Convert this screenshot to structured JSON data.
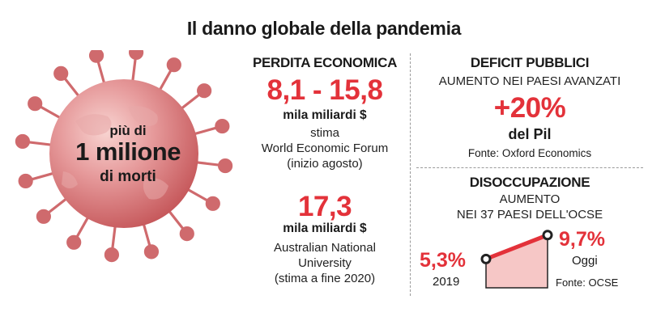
{
  "title": "Il danno globale della pandemia",
  "virus": {
    "line1": "più di",
    "line2": "1 milione",
    "line3": "di morti",
    "colors": {
      "body": "#d9777a",
      "spikes": "#c65a5e",
      "highlight": "#f5c6c3"
    }
  },
  "economic_loss": {
    "header": "PERDITA ECONOMICA",
    "value1": "8,1 - 15,8",
    "unit1": "mila miliardi $",
    "source1_line1": "stima",
    "source1_line2": "World Economic Forum",
    "source1_line3": "(inizio agosto)",
    "value2": "17,3",
    "unit2": "mila miliardi $",
    "source2_line1": "Australian National",
    "source2_line2": "University",
    "source2_line3": "(stima a fine 2020)"
  },
  "public_deficit": {
    "header": "DEFICIT PUBBLICI",
    "subheader": "AUMENTO NEI PAESI AVANZATI",
    "value": "+20%",
    "unit": "del Pil",
    "source": "Fonte: Oxford Economics"
  },
  "unemployment": {
    "header": "DISOCCUPAZIONE",
    "sub1": "AUMENTO",
    "sub2": "NEI 37 PAESI DELL'OCSE",
    "start_value": "5,3%",
    "start_label": "2019",
    "end_value": "9,7%",
    "end_label": "Oggi",
    "source": "Fonte: OCSE",
    "chart_data": {
      "type": "area",
      "x": [
        "2019",
        "Oggi"
      ],
      "values": [
        5.3,
        9.7
      ]
    }
  },
  "accent_color": "#e3323a"
}
